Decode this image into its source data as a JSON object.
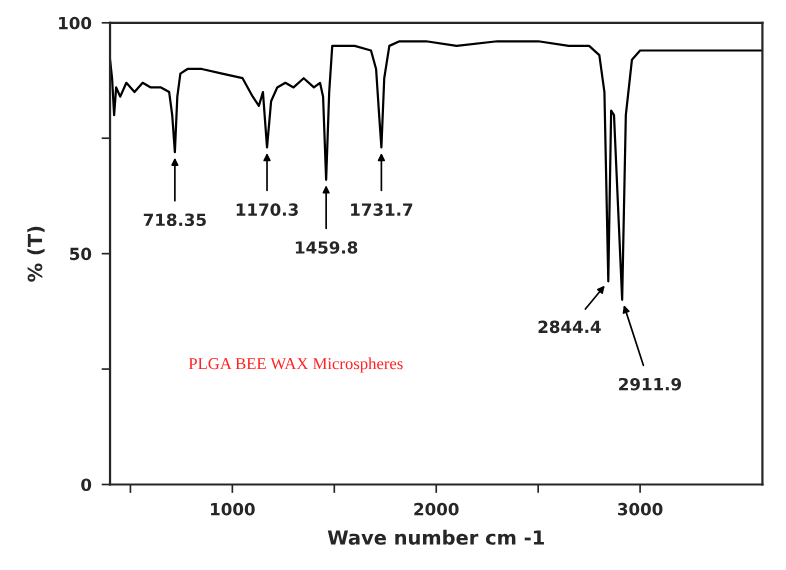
{
  "chart_data": {
    "type": "line",
    "xlabel": "Wave number cm -1",
    "ylabel": "% (T)",
    "xlim": [
      400,
      3600
    ],
    "ylim": [
      0,
      100
    ],
    "xticks": [
      {
        "value": 500,
        "label": null
      },
      1000,
      {
        "value": 1500,
        "label": null
      },
      2000,
      {
        "value": 2500,
        "label": null
      },
      3000
    ],
    "yticks": [
      0,
      {
        "value": 25,
        "label": null
      },
      50,
      {
        "value": 75,
        "label": null
      },
      100
    ],
    "grid": false,
    "marker": "none",
    "line_style": "solid",
    "series": [
      {
        "color": "#000000",
        "x": [
          400,
          410,
          420,
          430,
          450,
          480,
          520,
          560,
          600,
          650,
          690,
          705,
          718,
          730,
          745,
          780,
          850,
          950,
          1050,
          1100,
          1130,
          1150,
          1170,
          1190,
          1220,
          1260,
          1300,
          1350,
          1400,
          1430,
          1445,
          1460,
          1475,
          1490,
          1520,
          1600,
          1680,
          1705,
          1720,
          1731,
          1745,
          1770,
          1820,
          1950,
          2100,
          2300,
          2500,
          2650,
          2750,
          2800,
          2825,
          2844,
          2858,
          2872,
          2890,
          2912,
          2930,
          2960,
          3000,
          3100,
          3250,
          3400,
          3600
        ],
        "values": [
          92,
          88,
          80,
          86,
          84,
          87,
          85,
          87,
          86,
          86,
          85,
          80,
          72,
          84,
          89,
          90,
          90,
          89,
          88,
          84,
          82,
          85,
          73,
          83,
          86,
          87,
          86,
          88,
          86,
          87,
          84,
          66,
          85,
          95,
          95,
          95,
          94,
          90,
          80,
          73,
          88,
          95,
          96,
          96,
          95,
          96,
          96,
          95,
          95,
          93,
          85,
          44,
          81,
          80,
          62,
          40,
          80,
          92,
          94,
          94,
          94,
          94,
          94
        ]
      }
    ],
    "annotations": [
      {
        "text": "718.35",
        "x": 718,
        "y": 72
      },
      {
        "text": "1170.3",
        "x": 1170,
        "y": 73
      },
      {
        "text": "1459.8",
        "x": 1460,
        "y": 66
      },
      {
        "text": "1731.7",
        "x": 1731,
        "y": 73
      },
      {
        "text": "2844.4",
        "x": 2844,
        "y": 44
      },
      {
        "text": "2911.9",
        "x": 2912,
        "y": 40
      },
      "PLGA BEE WAX Microspheres"
    ]
  }
}
